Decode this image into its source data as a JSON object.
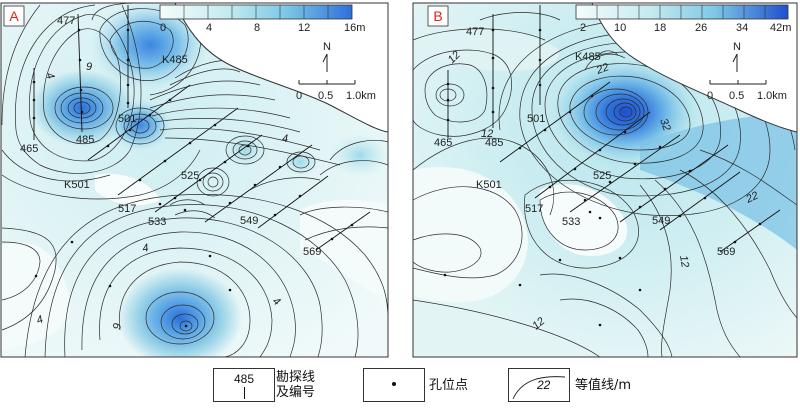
{
  "panel_a": {
    "label": "A",
    "colorbar": {
      "ticks": [
        "0",
        "4",
        "8",
        "12",
        "16m"
      ],
      "min": 0,
      "max": 16,
      "unit": "m"
    },
    "contour_labels": [
      "4",
      "4",
      "4",
      "4",
      "4",
      "9",
      "9"
    ],
    "lines": [
      "477",
      "K485",
      "501",
      "485",
      "465",
      "K501",
      "517",
      "525",
      "533",
      "549",
      "569"
    ]
  },
  "panel_b": {
    "label": "B",
    "colorbar": {
      "ticks": [
        "2",
        "10",
        "18",
        "26",
        "34",
        "42m"
      ],
      "min": 2,
      "max": 42,
      "unit": "m"
    },
    "contour_labels": [
      "12",
      "12",
      "22",
      "22",
      "32",
      "12",
      "12"
    ],
    "lines": [
      "477",
      "K485",
      "501",
      "485",
      "465",
      "K501",
      "517",
      "525",
      "533",
      "549",
      "569"
    ]
  },
  "north": "N",
  "scale_ticks": [
    "0",
    "0.5",
    "1.0km"
  ],
  "legend": {
    "line_number_sample": "485",
    "line_number_text_1": "勘探线",
    "line_number_text_2": "及编号",
    "borehole_text": "孔位点",
    "contour_sample": "22",
    "contour_text": "等值线/m"
  },
  "colors": {
    "low": "#f3fafa",
    "mid": "#9fdbe6",
    "high": "#3d8fe0",
    "peak": "#2160d8",
    "land": "#ffffff",
    "label_red": "#e2231a"
  }
}
